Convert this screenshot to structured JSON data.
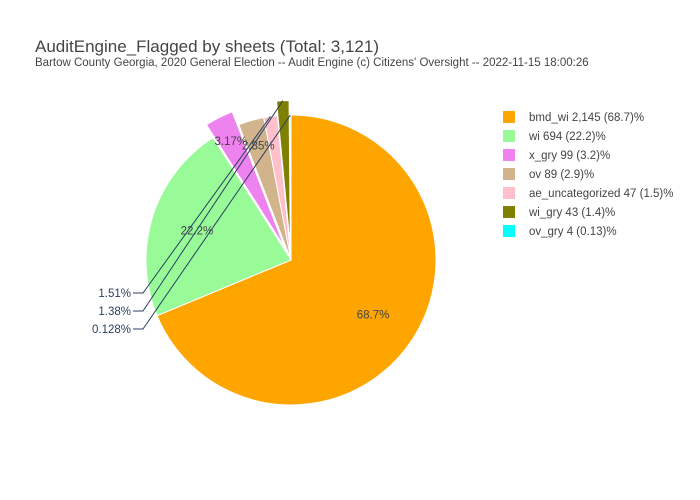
{
  "chart_data": {
    "type": "pie",
    "title": "AuditEngine_Flagged by sheets (Total: 3,121)",
    "subtitle": "Bartow County Georgia, 2020 General Election -- Audit Engine (c) Citizens' Oversight -- 2022-11-15 18:00:26",
    "total": 3121,
    "legend_position": "top-right",
    "slices": [
      {
        "name": "bmd_wi",
        "value": 2145,
        "label": "68.7%",
        "legend": "bmd_wi 2,145 (68.7)%",
        "color": "#FFA500",
        "pulled": false,
        "label_position": "inside"
      },
      {
        "name": "wi",
        "value": 694,
        "label": "22.2%",
        "legend": "wi 694 (22.2)%",
        "color": "#98FB98",
        "pulled": false,
        "label_position": "inside"
      },
      {
        "name": "x_gry",
        "value": 99,
        "label": "3.17%",
        "legend": "x_gry 99 (3.2)%",
        "color": "#EE82EE",
        "pulled": true,
        "label_position": "inside"
      },
      {
        "name": "ov",
        "value": 89,
        "label": "2.85%",
        "legend": "ov 89 (2.9)%",
        "color": "#D2B48C",
        "pulled": false,
        "label_position": "inside"
      },
      {
        "name": "ae_uncategorized",
        "value": 47,
        "label": "1.51%",
        "legend": "ae_uncategorized 47 (1.5)%",
        "color": "#FFC0CB",
        "pulled": false,
        "label_position": "outside"
      },
      {
        "name": "wi_gry",
        "value": 43,
        "label": "1.38%",
        "legend": "wi_gry 43 (1.4)%",
        "color": "#808000",
        "pulled": true,
        "label_position": "outside"
      },
      {
        "name": "ov_gry",
        "value": 4,
        "label": "0.128%",
        "legend": "ov_gry 4 (0.13)%",
        "color": "#00FFFF",
        "pulled": false,
        "label_position": "outside"
      }
    ]
  }
}
